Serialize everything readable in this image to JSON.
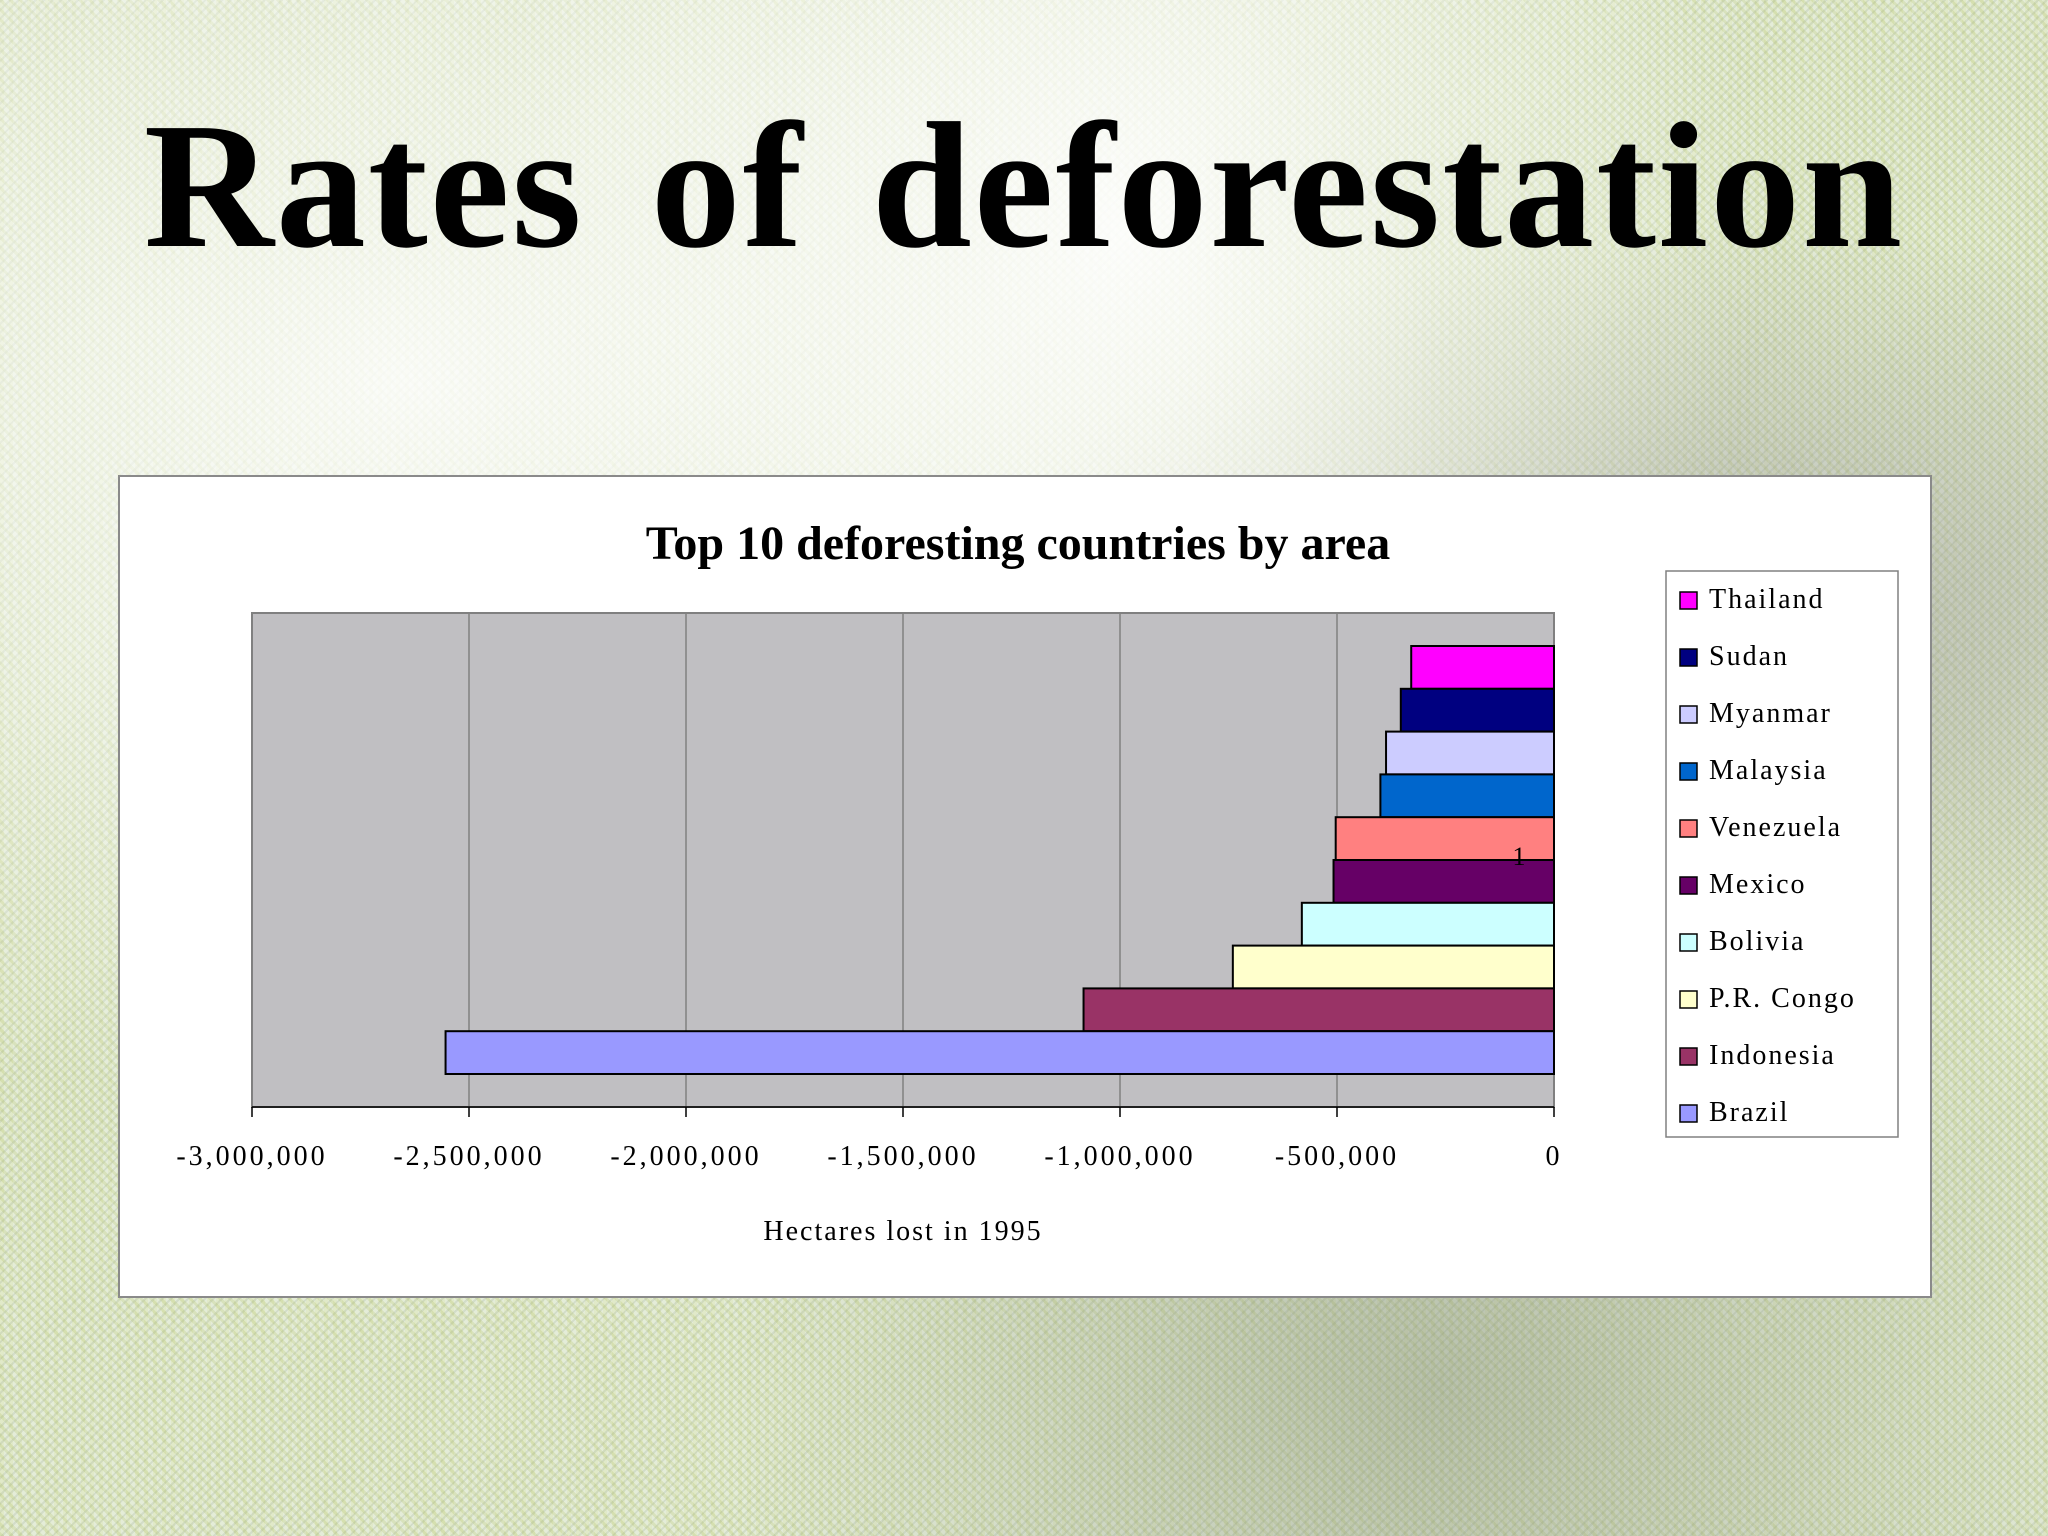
{
  "slide": {
    "title": "Rates of deforestation"
  },
  "chart_data": {
    "type": "bar",
    "orientation": "horizontal",
    "title": "Top 10 deforesting countries by area",
    "xlabel": "Hectares lost in 1995",
    "ylabel": "",
    "category_label": "1",
    "xlim": [
      -3000000,
      0
    ],
    "xticks": [
      -3000000,
      -2500000,
      -2000000,
      -1500000,
      -1000000,
      -500000,
      0
    ],
    "xtick_labels": [
      "-3,000,000",
      "-2,500,000",
      "-2,000,000",
      "-1,500,000",
      "-1,000,000",
      "-500,000",
      "0"
    ],
    "grid": true,
    "plot_background": "#c0bfc2",
    "legend_position": "right",
    "series": [
      {
        "name": "Thailand",
        "value": -329000,
        "color": "#ff00ff"
      },
      {
        "name": "Sudan",
        "value": -353000,
        "color": "#000080"
      },
      {
        "name": "Myanmar",
        "value": -387000,
        "color": "#ccccff"
      },
      {
        "name": "Malaysia",
        "value": -400000,
        "color": "#0066cc"
      },
      {
        "name": "Venezuela",
        "value": -503000,
        "color": "#ff8080"
      },
      {
        "name": "Mexico",
        "value": -508000,
        "color": "#660066"
      },
      {
        "name": "Bolivia",
        "value": -581000,
        "color": "#ccffff"
      },
      {
        "name": "P.R. Congo",
        "value": -740000,
        "color": "#ffffcc"
      },
      {
        "name": "Indonesia",
        "value": -1084000,
        "color": "#993366"
      },
      {
        "name": "Brazil",
        "value": -2554000,
        "color": "#9999ff"
      }
    ]
  }
}
